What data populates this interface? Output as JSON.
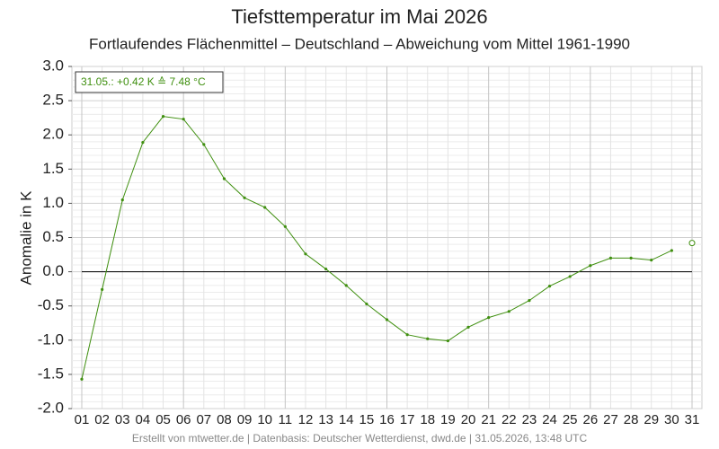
{
  "chart_data": {
    "type": "line",
    "title": "Tiefsttemperatur im Mai 2026",
    "subtitle": "Fortlaufendes Flächenmittel – Deutschland – Abweichung vom Mittel 1961-1990",
    "y_label": "Anomalie in K",
    "annotation": "31.05.: +0.42 K ≙ 7.48 °C",
    "footer": "Erstellt von mtwetter.de | Datenbasis: Deutscher Wetterdienst, dwd.de | 31.05.2026, 13:48 UTC",
    "categories": [
      "01",
      "02",
      "03",
      "04",
      "05",
      "06",
      "07",
      "08",
      "09",
      "10",
      "11",
      "12",
      "13",
      "14",
      "15",
      "16",
      "17",
      "18",
      "19",
      "20",
      "21",
      "22",
      "23",
      "24",
      "25",
      "26",
      "27",
      "28",
      "29",
      "30",
      "31"
    ],
    "series": [
      {
        "color": "#3f8f0f",
        "marker": "dot",
        "values": [
          -1.57,
          -0.26,
          1.05,
          1.89,
          2.27,
          2.23,
          1.86,
          1.36,
          1.08,
          0.94,
          0.66,
          0.26,
          0.04,
          -0.2,
          -0.47,
          -0.7,
          -0.92,
          -0.98,
          -1.01,
          -0.81,
          -0.67,
          -0.58,
          -0.42,
          -0.21,
          -0.07,
          0.09,
          0.2,
          0.2,
          0.17,
          0.31,
          null
        ]
      },
      {
        "color": "#3f8f0f",
        "marker": "open",
        "values": [
          null,
          null,
          null,
          null,
          null,
          null,
          null,
          null,
          null,
          null,
          null,
          null,
          null,
          null,
          null,
          null,
          null,
          null,
          null,
          null,
          null,
          null,
          null,
          null,
          null,
          null,
          null,
          null,
          null,
          null,
          0.42
        ]
      }
    ],
    "ylim": [
      -2,
      3
    ],
    "yticks": [
      {
        "value": -2,
        "label": "-2.0"
      },
      -1.5,
      {
        "value": -1,
        "label": "-1.0"
      },
      -0.5,
      {
        "value": 0,
        "label": "0.0"
      },
      0.5,
      {
        "value": 1,
        "label": "1.0"
      },
      1.5,
      {
        "value": 2,
        "label": "2.0"
      },
      2.5,
      {
        "value": 3,
        "label": "3.0"
      }
    ],
    "grid": true
  }
}
